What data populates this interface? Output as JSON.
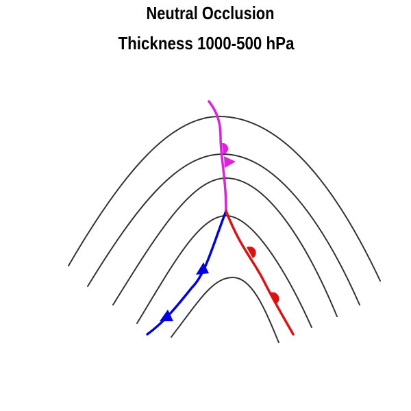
{
  "title": "Neutral Occlusion",
  "subtitle": "Thickness 1000-500 hPa"
}
